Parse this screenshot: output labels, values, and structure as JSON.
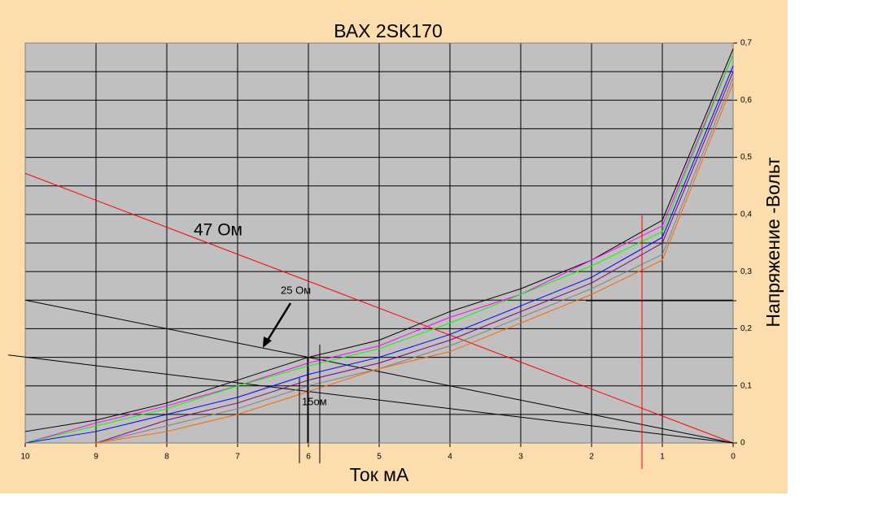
{
  "chart_data": {
    "type": "line",
    "title": "ВАХ 2SK170",
    "x_label": "Ток мА",
    "y_label": "Напряжение -Вольт",
    "x": [
      10,
      9,
      8,
      7,
      6,
      5,
      4,
      3,
      2,
      1,
      0
    ],
    "xlim": [
      10,
      0
    ],
    "xticks": [
      10,
      9,
      8,
      7,
      6,
      5,
      4,
      3,
      2,
      1,
      0
    ],
    "ylim": [
      0,
      0.7
    ],
    "yticks": [
      0,
      {
        "value": 0.1,
        "label": "0,1"
      },
      {
        "value": 0.2,
        "label": "0,2"
      },
      {
        "value": 0.3,
        "label": "0,3"
      },
      {
        "value": 0.4,
        "label": "0,4"
      },
      {
        "value": 0.5,
        "label": "0,5"
      },
      {
        "value": 0.6,
        "label": "0,6"
      },
      {
        "value": 0.7,
        "label": "0,7"
      }
    ],
    "y_minor_grid": [
      0.05,
      0.15,
      0.25,
      0.35,
      0.45,
      0.55,
      0.65
    ],
    "grid": true,
    "series": [
      {
        "color": "#000000",
        "values": [
          0.02,
          0.04,
          0.07,
          0.11,
          0.15,
          0.18,
          0.23,
          0.27,
          0.32,
          0.39,
          0.69
        ]
      },
      {
        "color": "#ff00ff",
        "values": [
          0,
          0.035,
          0.065,
          0.1,
          0.14,
          0.17,
          0.22,
          0.26,
          0.32,
          0.38,
          0.68
        ]
      },
      {
        "color": "#00ff00",
        "values": [
          0,
          0.03,
          0.06,
          0.1,
          0.135,
          0.165,
          0.21,
          0.26,
          0.31,
          0.37,
          0.68
        ]
      },
      {
        "color": "#0000ff",
        "values": [
          0,
          0.02,
          0.05,
          0.08,
          0.12,
          0.15,
          0.19,
          0.24,
          0.29,
          0.36,
          0.66
        ]
      },
      {
        "color": "#800080",
        "values": [
          0,
          0,
          0.04,
          0.07,
          0.11,
          0.14,
          0.18,
          0.23,
          0.28,
          0.35,
          0.65
        ]
      },
      {
        "color": "#808080",
        "values": [
          0,
          0,
          0.03,
          0.06,
          0.1,
          0.13,
          0.17,
          0.22,
          0.27,
          0.33,
          0.64
        ]
      },
      {
        "color": "#ff6600",
        "values": [
          null,
          0,
          0.02,
          0.05,
          0.09,
          0.13,
          0.16,
          0.21,
          0.26,
          0.32,
          0.63
        ]
      }
    ],
    "load_lines": [
      {
        "color": "#ff0000",
        "x": [
          10,
          0
        ],
        "values": [
          0.472,
          0
        ]
      },
      {
        "color": "#000000",
        "x": [
          10,
          0
        ],
        "values": [
          0.25,
          0
        ]
      },
      {
        "color": "#000000",
        "x": [
          10.24,
          0
        ],
        "values": [
          0.154,
          0
        ]
      }
    ],
    "annotations": [
      "47 Ом",
      "25 Ом",
      "15ом"
    ]
  }
}
